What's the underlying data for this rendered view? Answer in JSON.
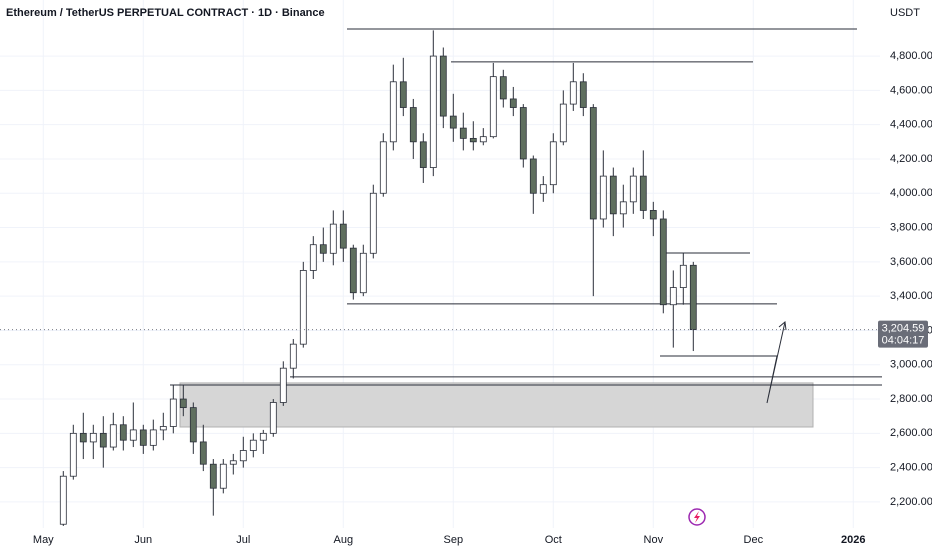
{
  "chart_data": {
    "type": "candlestick",
    "title": "Ethereum / TetherUS PERPETUAL CONTRACT · 1D · Binance",
    "y_axis_label": "USDT",
    "categories": [
      "May",
      null,
      null,
      null,
      null,
      null,
      null,
      null,
      null,
      null,
      "Jun",
      null,
      null,
      null,
      null,
      null,
      null,
      null,
      null,
      null,
      "Jul",
      null,
      null,
      null,
      null,
      null,
      null,
      null,
      null,
      null,
      "Aug",
      null,
      null,
      null,
      null,
      null,
      null,
      null,
      null,
      null,
      null,
      "Sep",
      null,
      null,
      null,
      null,
      null,
      null,
      null,
      null,
      null,
      "Oct",
      null,
      null,
      null,
      null,
      null,
      null,
      null,
      null,
      null,
      "Nov",
      null,
      null,
      null,
      null,
      null,
      null,
      null,
      null,
      null,
      "Dec",
      null,
      null,
      null,
      null,
      null,
      null,
      null,
      null,
      null,
      "2026"
    ],
    "open": [
      null,
      null,
      2070,
      2350,
      2600,
      2550,
      2600,
      2520,
      2650,
      2560,
      2620,
      2530,
      2620,
      2640,
      2800,
      2750,
      2550,
      2420,
      2280,
      2420,
      2440,
      2500,
      2560,
      2600,
      2780,
      2980,
      3120,
      3550,
      3700,
      3650,
      3820,
      3680,
      3420,
      3650,
      4000,
      4300,
      4650,
      4500,
      4300,
      4150,
      4800,
      4450,
      4380,
      4320,
      4300,
      4330,
      4680,
      4550,
      4500,
      4200,
      4000,
      4050,
      4300,
      4520,
      4650,
      4500,
      3850,
      4100,
      3880,
      3950,
      4100,
      3900,
      3850,
      3350,
      3450,
      3580,
      null,
      null,
      null,
      null,
      null,
      null,
      null,
      null,
      null,
      null,
      null,
      null,
      null,
      null,
      null,
      null
    ],
    "high": [
      null,
      null,
      2380,
      2650,
      2720,
      2650,
      2700,
      2720,
      2700,
      2780,
      2650,
      2680,
      2720,
      2880,
      2880,
      2780,
      2650,
      2450,
      2450,
      2480,
      2580,
      2600,
      2620,
      2800,
      3020,
      3150,
      3600,
      3750,
      3800,
      3900,
      3900,
      3700,
      3700,
      4050,
      4350,
      4750,
      4790,
      4550,
      4350,
      4950,
      4850,
      4580,
      4470,
      4420,
      4380,
      4760,
      4720,
      4620,
      4520,
      4220,
      4100,
      4350,
      4600,
      4760,
      4700,
      4520,
      4250,
      4150,
      4050,
      4150,
      4250,
      3950,
      3900,
      3550,
      3650,
      3600,
      null,
      null,
      null,
      null,
      null,
      null,
      null,
      null,
      null,
      null,
      null,
      null,
      null,
      null,
      null,
      null
    ],
    "low": [
      null,
      null,
      2060,
      2330,
      2450,
      2450,
      2400,
      2500,
      2500,
      2520,
      2480,
      2500,
      2560,
      2600,
      2700,
      2480,
      2380,
      2120,
      2250,
      2360,
      2400,
      2460,
      2480,
      2580,
      2760,
      2920,
      3100,
      3500,
      3600,
      3580,
      3600,
      3380,
      3400,
      3620,
      3980,
      4250,
      4450,
      4200,
      4060,
      4100,
      4380,
      4300,
      4250,
      4250,
      4280,
      4320,
      4500,
      4450,
      4150,
      3880,
      3950,
      4000,
      4280,
      4480,
      4450,
      3400,
      3800,
      3750,
      3800,
      3880,
      3850,
      3750,
      3300,
      3100,
      3350,
      3080,
      null,
      null,
      null,
      null,
      null,
      null,
      null,
      null,
      null,
      null,
      null,
      null,
      null,
      null,
      null,
      null
    ],
    "close": [
      null,
      null,
      2350,
      2600,
      2550,
      2600,
      2520,
      2650,
      2560,
      2620,
      2530,
      2620,
      2640,
      2800,
      2750,
      2550,
      2420,
      2280,
      2420,
      2440,
      2500,
      2560,
      2600,
      2780,
      2980,
      3120,
      3550,
      3700,
      3650,
      3820,
      3680,
      3420,
      3650,
      4000,
      4300,
      4650,
      4500,
      4300,
      4150,
      4800,
      4450,
      4380,
      4320,
      4300,
      4330,
      4680,
      4550,
      4500,
      4200,
      4000,
      4050,
      4300,
      4520,
      4650,
      4500,
      3850,
      4100,
      3880,
      3950,
      4100,
      3900,
      3850,
      3350,
      3450,
      3580,
      3205,
      null,
      null,
      null,
      null,
      null,
      null,
      null,
      null,
      null,
      null,
      null,
      null,
      null,
      null,
      null,
      null
    ],
    "up_color": "#ffffff",
    "down_color": "#5f6f5f",
    "wick_color": "#2a2e39",
    "ylim": [
      2048,
      5127
    ],
    "yticks": [
      {
        "value": 2200,
        "label": "2,200.00"
      },
      {
        "value": 2400,
        "label": "2,400.00"
      },
      {
        "value": 2600,
        "label": "2,600.00"
      },
      {
        "value": 2800,
        "label": "2,800.00"
      },
      {
        "value": 3000,
        "label": "3,000.00"
      },
      {
        "value": 3200,
        "label": "3,200.00"
      },
      {
        "value": 3400,
        "label": "3,400.00"
      },
      {
        "value": 3600,
        "label": "3,600.00"
      },
      {
        "value": 3800,
        "label": "3,800.00"
      },
      {
        "value": 4000,
        "label": "4,000.00"
      },
      {
        "value": 4200,
        "label": "4,200.00"
      },
      {
        "value": 4400,
        "label": "4,400.00"
      },
      {
        "value": 4600,
        "label": "4,600.00"
      },
      {
        "value": 4800,
        "label": "4,800.00"
      }
    ],
    "grid": true,
    "levels": [
      4958,
      4766,
      3652,
      3355,
      3051,
      2929,
      2882
    ],
    "zone": [
      2637,
      2894
    ],
    "last_price": {
      "value": 3204.59,
      "label": "3,204.59"
    },
    "countdown": "04:04:17"
  }
}
